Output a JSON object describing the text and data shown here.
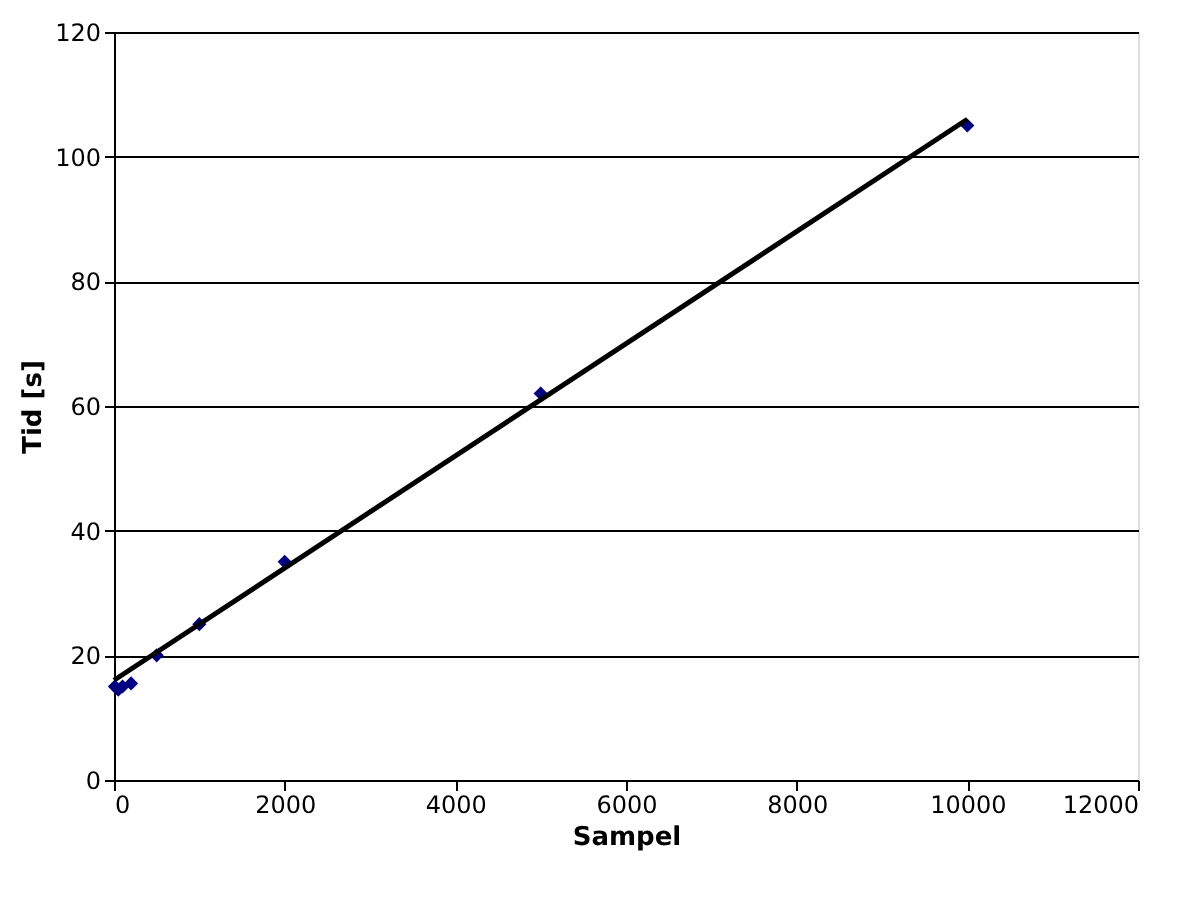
{
  "chart_data": {
    "type": "scatter",
    "xlabel": "Sampel",
    "ylabel": "Tid [s]",
    "xlim": [
      0,
      12000
    ],
    "xticks": [
      0,
      2000,
      4000,
      6000,
      8000,
      10000,
      12000
    ],
    "ylim": [
      0,
      120
    ],
    "yticks": [
      0,
      20,
      40,
      60,
      80,
      100,
      120
    ],
    "grid": "y",
    "marker": "diamond",
    "series": [
      {
        "color": "#000080",
        "x": [
          10,
          50,
          100,
          200,
          500,
          1000,
          2000,
          5000,
          10000
        ],
        "values": [
          15,
          14.5,
          15,
          15.5,
          20,
          25,
          35,
          62,
          105
        ]
      },
      {
        "type": "line",
        "marker": "none",
        "color": "#000000",
        "x": [
          0,
          10000
        ],
        "values": [
          16,
          106
        ],
        "line_style": "solid"
      }
    ]
  }
}
